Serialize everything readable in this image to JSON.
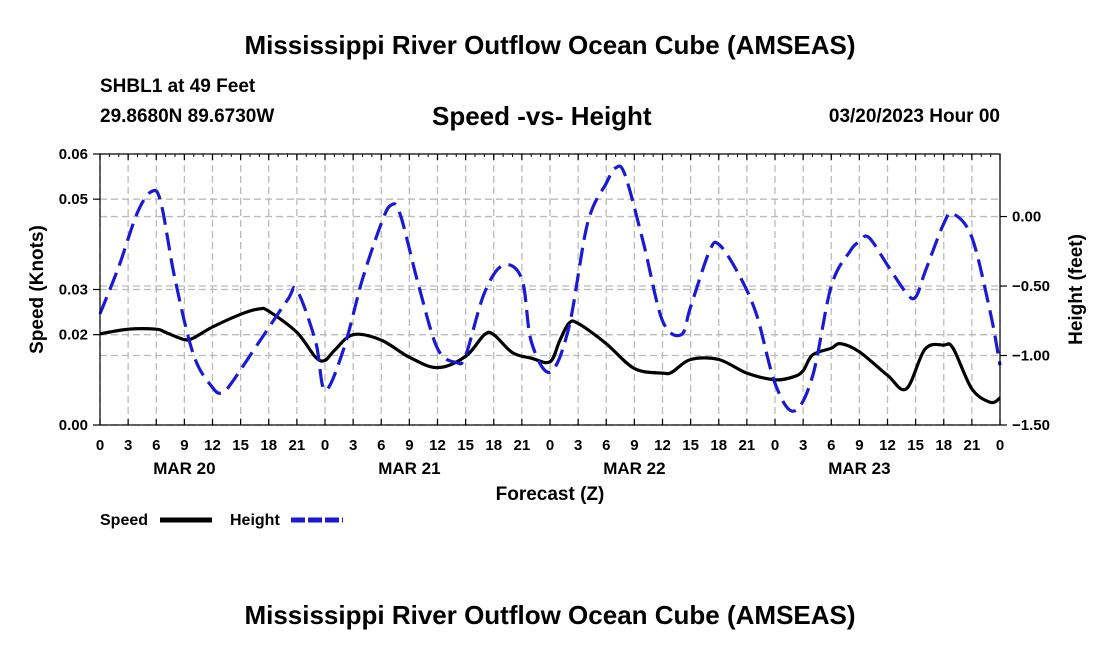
{
  "header": {
    "title": "Mississippi River Outflow Ocean Cube (AMSEAS)",
    "station": "SHBL1 at 49 Feet",
    "coords": "29.8680N  89.6730W",
    "subtitle": "Speed -vs- Height",
    "datetime": "03/20/2023 Hour 00"
  },
  "footer": {
    "title": "Mississippi River Outflow Ocean Cube (AMSEAS)"
  },
  "legend": {
    "speed_label": "Speed",
    "height_label": "Height"
  },
  "colors": {
    "speed": "#000000",
    "height": "#1a1ad6",
    "grid": "#bbbbbb"
  },
  "chart_data": {
    "type": "line",
    "title": "Speed -vs- Height",
    "xlabel": "Forecast (Z)",
    "ylabel": "Speed (Knots)",
    "y2label": "Height (feet)",
    "x_range": [
      0,
      96
    ],
    "x_tick_hours": [
      0,
      3,
      6,
      9,
      12,
      15,
      18,
      21,
      24,
      27,
      30,
      33,
      36,
      39,
      42,
      45,
      48,
      51,
      54,
      57,
      60,
      63,
      66,
      69,
      72,
      75,
      78,
      81,
      84,
      87,
      90,
      93,
      96
    ],
    "x_tick_labels": [
      "0",
      "3",
      "6",
      "9",
      "12",
      "15",
      "18",
      "21",
      "0",
      "3",
      "6",
      "9",
      "12",
      "15",
      "18",
      "21",
      "0",
      "3",
      "6",
      "9",
      "12",
      "15",
      "18",
      "21",
      "0",
      "3",
      "6",
      "9",
      "12",
      "15",
      "18",
      "21",
      "0"
    ],
    "day_labels": [
      {
        "label": "MAR 20",
        "hour": 9
      },
      {
        "label": "MAR 21",
        "hour": 33
      },
      {
        "label": "MAR 22",
        "hour": 57
      },
      {
        "label": "MAR 23",
        "hour": 81
      }
    ],
    "ylim": [
      0,
      0.06
    ],
    "y_ticks": [
      0.0,
      0.02,
      0.03,
      0.05,
      0.06
    ],
    "y_tick_labels": [
      "0.00",
      "0.02",
      "0.03",
      "0.05",
      "0.06"
    ],
    "y2lim": [
      -1.5,
      0.45
    ],
    "y2_ticks": [
      0.0,
      -0.5,
      -1.0,
      -1.5
    ],
    "y2_tick_labels": [
      "0.00",
      "−0.50",
      "−1.00",
      "−1.50"
    ],
    "series": [
      {
        "name": "Speed",
        "axis": "left",
        "style": "solid",
        "points": [
          [
            0,
            0.0202
          ],
          [
            3,
            0.0212
          ],
          [
            6,
            0.0212
          ],
          [
            7,
            0.0205
          ],
          [
            9,
            0.0189
          ],
          [
            10,
            0.0193
          ],
          [
            12,
            0.0217
          ],
          [
            15,
            0.0245
          ],
          [
            17,
            0.0257
          ],
          [
            18,
            0.0252
          ],
          [
            21,
            0.0205
          ],
          [
            23,
            0.015
          ],
          [
            24,
            0.0143
          ],
          [
            25,
            0.0165
          ],
          [
            27,
            0.02
          ],
          [
            30,
            0.0188
          ],
          [
            33,
            0.015
          ],
          [
            36,
            0.0127
          ],
          [
            39,
            0.0152
          ],
          [
            41,
            0.02
          ],
          [
            42,
            0.02
          ],
          [
            44,
            0.016
          ],
          [
            46,
            0.0148
          ],
          [
            48,
            0.014
          ],
          [
            49,
            0.0185
          ],
          [
            50,
            0.0225
          ],
          [
            51,
            0.0225
          ],
          [
            54,
            0.018
          ],
          [
            57,
            0.0125
          ],
          [
            60,
            0.0115
          ],
          [
            61,
            0.0117
          ],
          [
            63,
            0.0145
          ],
          [
            66,
            0.0145
          ],
          [
            69,
            0.0115
          ],
          [
            72,
            0.01
          ],
          [
            74,
            0.0107
          ],
          [
            75,
            0.012
          ],
          [
            76,
            0.0155
          ],
          [
            78,
            0.017
          ],
          [
            79,
            0.018
          ],
          [
            81,
            0.0162
          ],
          [
            84,
            0.011
          ],
          [
            86,
            0.008
          ],
          [
            88,
            0.0168
          ],
          [
            90,
            0.0177
          ],
          [
            91,
            0.017
          ],
          [
            93,
            0.008
          ],
          [
            95,
            0.005
          ],
          [
            96,
            0.006
          ]
        ]
      },
      {
        "name": "Height",
        "axis": "right",
        "style": "dashed",
        "points": [
          [
            0,
            -0.7
          ],
          [
            2,
            -0.36
          ],
          [
            4,
            0.03
          ],
          [
            5.5,
            0.18
          ],
          [
            6.5,
            0.1
          ],
          [
            8,
            -0.45
          ],
          [
            10,
            -1.0
          ],
          [
            12,
            -1.23
          ],
          [
            13,
            -1.27
          ],
          [
            14,
            -1.2
          ],
          [
            17,
            -0.9
          ],
          [
            20,
            -0.6
          ],
          [
            21,
            -0.53
          ],
          [
            23,
            -0.9
          ],
          [
            24,
            -1.25
          ],
          [
            26,
            -0.95
          ],
          [
            28,
            -0.45
          ],
          [
            30,
            -0.05
          ],
          [
            31,
            0.08
          ],
          [
            32,
            0.02
          ],
          [
            34,
            -0.5
          ],
          [
            36,
            -0.95
          ],
          [
            38,
            -1.05
          ],
          [
            39,
            -1.0
          ],
          [
            41,
            -0.55
          ],
          [
            43,
            -0.35
          ],
          [
            45,
            -0.45
          ],
          [
            46,
            -0.9
          ],
          [
            48,
            -1.12
          ],
          [
            50,
            -0.8
          ],
          [
            52,
            -0.05
          ],
          [
            54,
            0.24
          ],
          [
            55,
            0.35
          ],
          [
            56,
            0.3
          ],
          [
            58,
            -0.2
          ],
          [
            60,
            -0.75
          ],
          [
            62,
            -0.85
          ],
          [
            63,
            -0.65
          ],
          [
            65,
            -0.25
          ],
          [
            66,
            -0.2
          ],
          [
            68,
            -0.4
          ],
          [
            70,
            -0.7
          ],
          [
            72,
            -1.2
          ],
          [
            74,
            -1.4
          ],
          [
            76,
            -1.15
          ],
          [
            78,
            -0.5
          ],
          [
            80,
            -0.25
          ],
          [
            81,
            -0.18
          ],
          [
            82,
            -0.15
          ],
          [
            84,
            -0.35
          ],
          [
            86,
            -0.55
          ],
          [
            87,
            -0.58
          ],
          [
            88,
            -0.4
          ],
          [
            90,
            -0.05
          ],
          [
            91,
            0.02
          ],
          [
            93,
            -0.15
          ],
          [
            95,
            -0.7
          ],
          [
            96,
            -1.07
          ]
        ]
      }
    ]
  }
}
